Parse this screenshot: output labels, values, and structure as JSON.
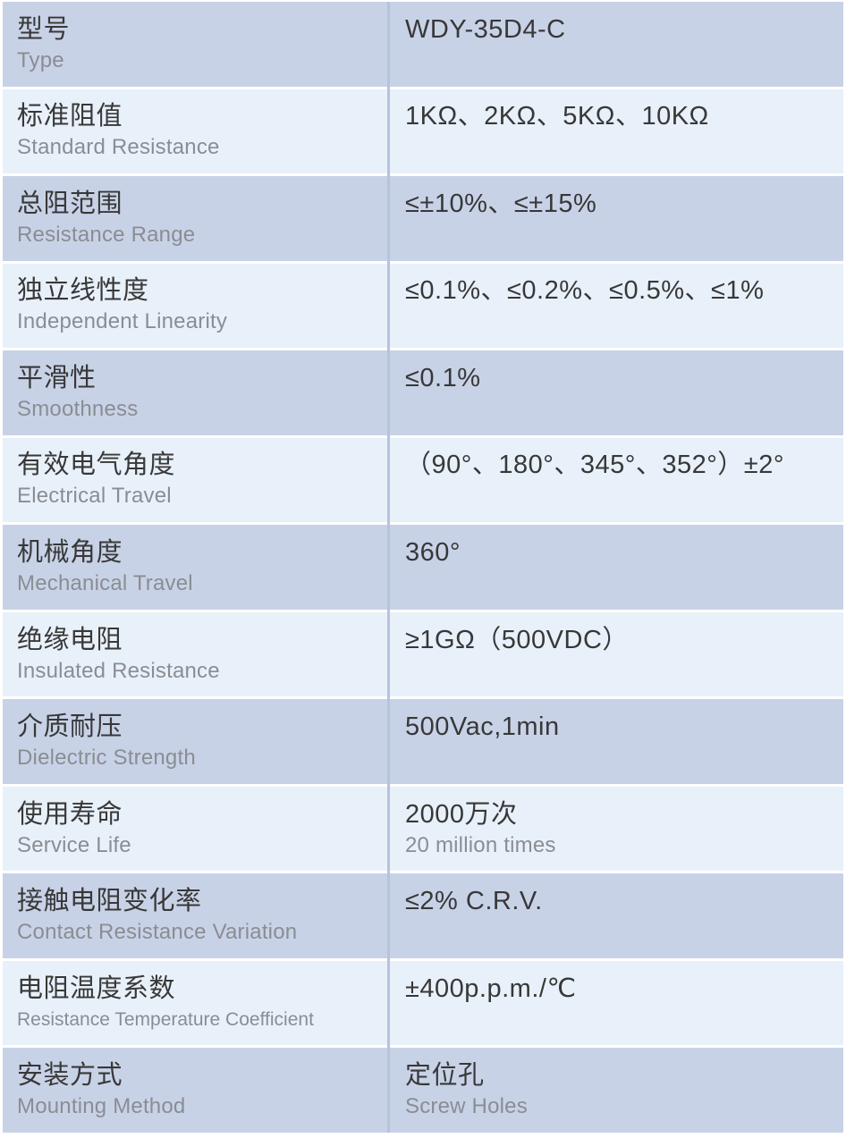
{
  "colors": {
    "row_dark": "#c8d2e7",
    "row_light": "#e8f1fa",
    "divider": "#b5c3de",
    "border_white": "#ffffff",
    "text_main": "#383838",
    "text_sub": "#8a8d92"
  },
  "table": {
    "rows": [
      {
        "zh": "型号",
        "en": "Type",
        "value": "WDY-35D4-C",
        "value_sub": ""
      },
      {
        "zh": "标准阻值",
        "en": "Standard Resistance",
        "value": "1KΩ、2KΩ、5KΩ、10KΩ",
        "value_sub": ""
      },
      {
        "zh": "总阻范围",
        "en": "Resistance Range",
        "value": "≤±10%、≤±15%",
        "value_sub": ""
      },
      {
        "zh": "独立线性度",
        "en": "Independent Linearity",
        "value": "≤0.1%、≤0.2%、≤0.5%、≤1%",
        "value_sub": ""
      },
      {
        "zh": "平滑性",
        "en": "Smoothness",
        "value": "≤0.1%",
        "value_sub": ""
      },
      {
        "zh": "有效电气角度",
        "en": "Electrical Travel",
        "value": "（90°、180°、345°、352°）±2°",
        "value_sub": ""
      },
      {
        "zh": "机械角度",
        "en": "Mechanical Travel",
        "value": "360°",
        "value_sub": ""
      },
      {
        "zh": "绝缘电阻",
        "en": "Insulated Resistance",
        "value": "≥1GΩ（500VDC）",
        "value_sub": ""
      },
      {
        "zh": "介质耐压",
        "en": "Dielectric Strength",
        "value": "500Vac,1min",
        "value_sub": ""
      },
      {
        "zh": "使用寿命",
        "en": "Service Life",
        "value": "2000万次",
        "value_sub": "20 million times"
      },
      {
        "zh": "接触电阻变化率",
        "en": "Contact Resistance Variation",
        "value": "≤2% C.R.V.",
        "value_sub": ""
      },
      {
        "zh": "电阻温度系数",
        "en": "Resistance Temperature Coefficient",
        "value": "±400p.p.m./℃",
        "value_sub": ""
      },
      {
        "zh": "安装方式",
        "en": "Mounting Method",
        "value": "定位孔",
        "value_sub": "Screw Holes"
      }
    ]
  }
}
